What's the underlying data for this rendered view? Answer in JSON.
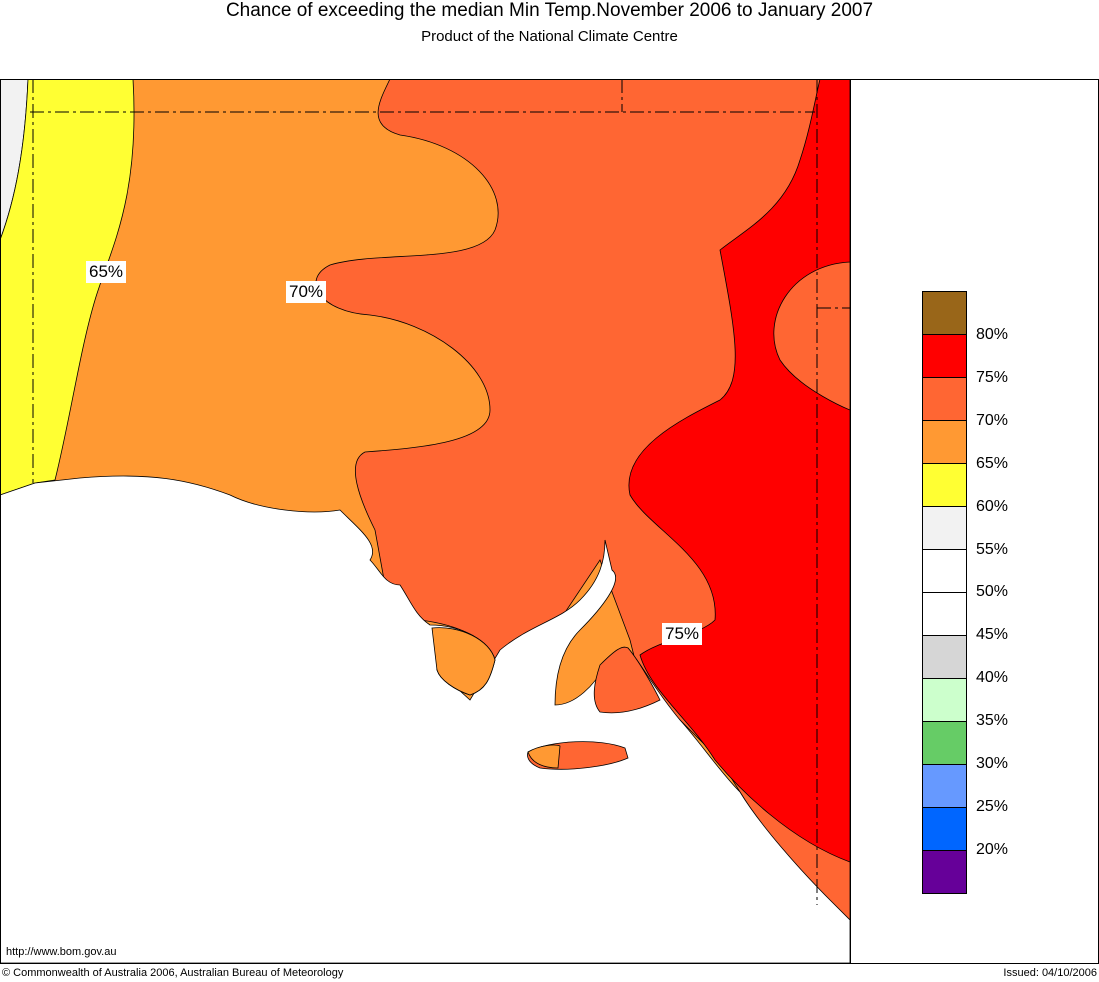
{
  "header": {
    "title": "Chance of exceeding the median Min Temp.November 2006 to January 2007",
    "subtitle": "Product of the National Climate Centre"
  },
  "map": {
    "contour_labels": [
      "65%",
      "70%",
      "75%"
    ],
    "colors": {
      "grey_55_60": "#F2F2F2",
      "yellow_60_65": "#FFFF33",
      "orange_65_70": "#FF9933",
      "orangered_70_75": "#FF6633",
      "red_75_80": "#FF0000"
    }
  },
  "legend": {
    "swatches": [
      "#996619",
      "#FF0000",
      "#FF6633",
      "#FF9933",
      "#FFFF33",
      "#F2F2F2",
      "#FFFFFF",
      "#FFFFFF",
      "#D6D6D6",
      "#CCFFCC",
      "#66CC66",
      "#6699FF",
      "#0066FF",
      "#660099"
    ],
    "labels": [
      "80%",
      "75%",
      "70%",
      "65%",
      "60%",
      "55%",
      "50%",
      "45%",
      "40%",
      "35%",
      "30%",
      "25%",
      "20%"
    ]
  },
  "footer": {
    "url": "http://www.bom.gov.au",
    "copyright": "© Commonwealth of Australia 2006, Australian Bureau of Meteorology",
    "issued": "Issued: 04/10/2006"
  }
}
